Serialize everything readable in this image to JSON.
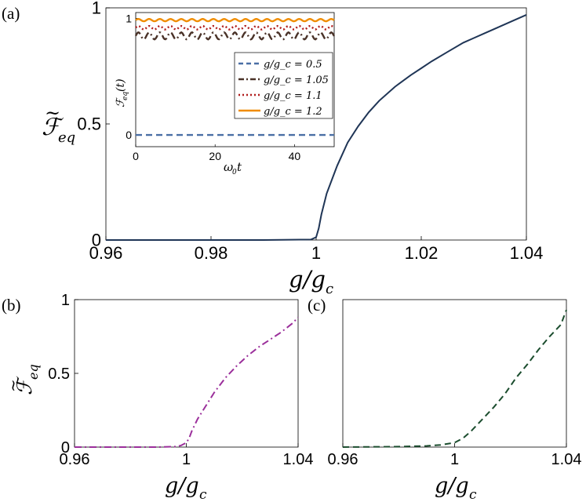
{
  "chart_data": [
    {
      "panel": "(a)",
      "type": "line",
      "xlabel": "g/g_c",
      "ylabel": "F̃_eq",
      "xlim": [
        0.96,
        1.04
      ],
      "ylim": [
        0,
        1
      ],
      "xticks": [
        "0.96",
        "0.98",
        "1",
        "1.02",
        "1.04"
      ],
      "yticks": [
        "0",
        "0.5",
        "1"
      ],
      "grid": false,
      "series": [
        {
          "color": "#1f3556",
          "style": "solid",
          "x": [
            0.96,
            0.99,
            0.999,
            1.0,
            1.0005,
            1.001,
            1.002,
            1.003,
            1.004,
            1.006,
            1.008,
            1.01,
            1.012,
            1.015,
            1.018,
            1.02,
            1.022,
            1.025,
            1.028,
            1.03,
            1.032,
            1.035,
            1.038,
            1.04
          ],
          "y": [
            0.0,
            0.0,
            0.002,
            0.012,
            0.05,
            0.11,
            0.2,
            0.26,
            0.32,
            0.42,
            0.49,
            0.55,
            0.6,
            0.66,
            0.71,
            0.74,
            0.77,
            0.81,
            0.85,
            0.87,
            0.89,
            0.92,
            0.95,
            0.97
          ]
        }
      ],
      "inset": {
        "type": "line",
        "xlabel": "ω₀t",
        "ylabel": "F_eq(t)",
        "xlim": [
          0,
          50
        ],
        "ylim": [
          -0.1,
          1.05
        ],
        "xticks": [
          "0",
          "20",
          "40"
        ],
        "yticks": [
          "0",
          "1"
        ],
        "legend": "bottom-right",
        "series": [
          {
            "name": "g/g_c = 0.5",
            "label": "g/g_c = 0.5",
            "color": "#4a6fa5",
            "style": "dashed",
            "mean": 0.0,
            "amp": 0.0
          },
          {
            "name": "g/g_c = 1.05",
            "label": "g/g_c = 1.05",
            "color": "#4a3228",
            "style": "dashdot",
            "mean": 0.85,
            "amp": 0.03
          },
          {
            "name": "g/g_c = 1.1",
            "label": "g/g_c = 1.1",
            "color": "#b01c1c",
            "style": "dotted",
            "mean": 0.92,
            "amp": 0.015
          },
          {
            "name": "g/g_c = 1.2",
            "label": "g/g_c = 1.2",
            "color": "#f08c00",
            "style": "solid",
            "mean": 0.985,
            "amp": 0.01
          }
        ]
      }
    },
    {
      "panel": "(b)",
      "type": "line",
      "xlabel": "g/g_c",
      "ylabel": "F̃_eq",
      "xlim": [
        0.96,
        1.04
      ],
      "ylim": [
        0,
        1
      ],
      "xticks": [
        "0.96",
        "1",
        "1.04"
      ],
      "yticks": [
        "0",
        "0.5",
        "1"
      ],
      "series": [
        {
          "color": "#9b2f9b",
          "style": "dashdot",
          "x": [
            0.96,
            0.99,
            0.996,
            0.998,
            1.0,
            1.001,
            1.002,
            1.004,
            1.006,
            1.008,
            1.01,
            1.014,
            1.018,
            1.022,
            1.026,
            1.03,
            1.034,
            1.038,
            1.04
          ],
          "y": [
            0.0,
            0.0,
            0.003,
            0.01,
            0.03,
            0.06,
            0.11,
            0.19,
            0.25,
            0.31,
            0.37,
            0.47,
            0.55,
            0.62,
            0.68,
            0.73,
            0.78,
            0.84,
            0.88
          ]
        }
      ]
    },
    {
      "panel": "(c)",
      "type": "line",
      "xlabel": "g/g_c",
      "ylabel": "",
      "xlim": [
        0.96,
        1.04
      ],
      "ylim": [
        0,
        1
      ],
      "xticks": [
        "0.96",
        "1",
        "1.04"
      ],
      "yticks": [],
      "series": [
        {
          "color": "#1b4d2e",
          "style": "dashed",
          "x": [
            0.96,
            0.98,
            0.99,
            0.995,
            1.0,
            1.003,
            1.006,
            1.01,
            1.014,
            1.018,
            1.022,
            1.026,
            1.03,
            1.034,
            1.038,
            1.04
          ],
          "y": [
            0.0,
            0.003,
            0.008,
            0.015,
            0.03,
            0.06,
            0.11,
            0.19,
            0.27,
            0.36,
            0.47,
            0.56,
            0.66,
            0.75,
            0.83,
            0.93
          ]
        }
      ]
    }
  ]
}
